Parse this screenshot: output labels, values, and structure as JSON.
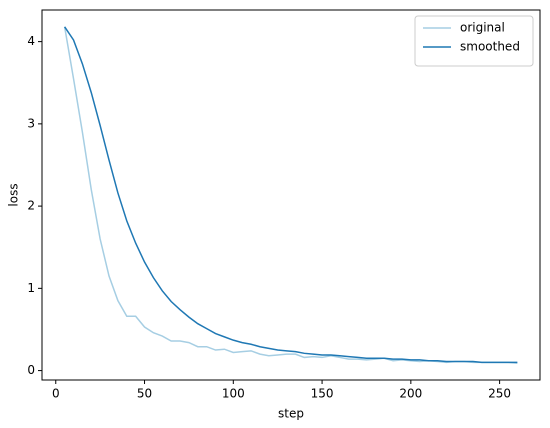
{
  "chart_data": {
    "type": "line",
    "x_label": "step",
    "y_label": "loss",
    "x": [
      5,
      10,
      15,
      20,
      25,
      30,
      35,
      40,
      45,
      50,
      55,
      60,
      65,
      70,
      75,
      80,
      85,
      90,
      95,
      100,
      105,
      110,
      115,
      120,
      125,
      130,
      135,
      140,
      145,
      150,
      155,
      160,
      165,
      170,
      175,
      180,
      185,
      190,
      195,
      200,
      205,
      210,
      215,
      220,
      225,
      230,
      235,
      240,
      245,
      250,
      255,
      260
    ],
    "series": [
      {
        "name": "original",
        "color": "#a6cee3",
        "values": [
          4.18,
          3.55,
          2.9,
          2.2,
          1.6,
          1.15,
          0.85,
          0.66,
          0.66,
          0.53,
          0.46,
          0.42,
          0.36,
          0.36,
          0.34,
          0.29,
          0.29,
          0.25,
          0.26,
          0.22,
          0.23,
          0.24,
          0.2,
          0.18,
          0.19,
          0.2,
          0.2,
          0.16,
          0.17,
          0.16,
          0.18,
          0.16,
          0.14,
          0.14,
          0.13,
          0.14,
          0.15,
          0.12,
          0.13,
          0.12,
          0.11,
          0.12,
          0.11,
          0.1,
          0.11,
          0.11,
          0.1,
          0.1,
          0.1,
          0.1,
          0.1,
          0.09
        ]
      },
      {
        "name": "smoothed",
        "color": "#1f78b4",
        "values": [
          4.18,
          4.02,
          3.73,
          3.38,
          2.98,
          2.56,
          2.16,
          1.82,
          1.55,
          1.32,
          1.13,
          0.97,
          0.84,
          0.74,
          0.65,
          0.57,
          0.51,
          0.45,
          0.41,
          0.37,
          0.34,
          0.32,
          0.29,
          0.27,
          0.25,
          0.24,
          0.23,
          0.21,
          0.2,
          0.19,
          0.19,
          0.18,
          0.17,
          0.16,
          0.15,
          0.15,
          0.15,
          0.14,
          0.14,
          0.13,
          0.13,
          0.12,
          0.12,
          0.11,
          0.11,
          0.11,
          0.11,
          0.1,
          0.1,
          0.1,
          0.1,
          0.1
        ]
      }
    ],
    "xlim": [
      -7.75,
      272.75
    ],
    "ylim": [
      -0.1145,
      4.3845
    ],
    "xticks": [
      0,
      50,
      100,
      150,
      200,
      250
    ],
    "yticks": [
      0,
      1,
      2,
      3,
      4
    ],
    "grid": false,
    "legend": "upper right"
  }
}
